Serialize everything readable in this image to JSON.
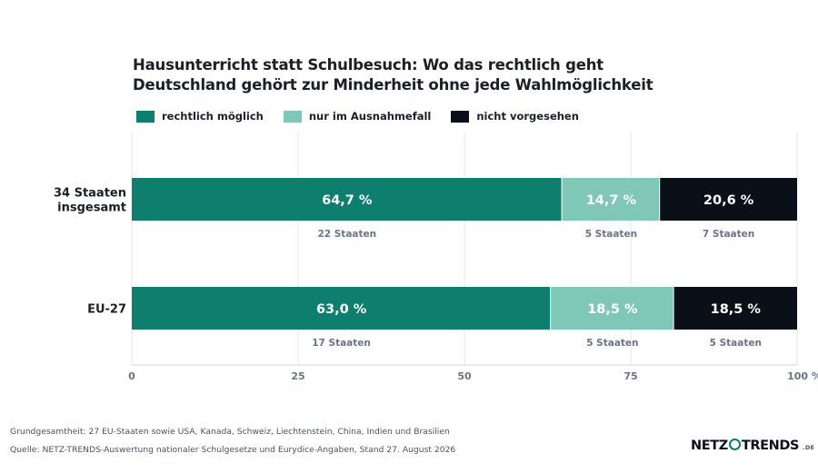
{
  "header": {
    "title_line1": "Hausunterricht statt Schulbesuch: Wo das rechtlich geht",
    "title_line2": "Deutschland gehört zur Minderheit ohne jede Wahlmöglichkeit"
  },
  "legend": [
    {
      "label": "rechtlich möglich",
      "color": "#0e7f6f"
    },
    {
      "label": "nur im Ausnahmefall",
      "color": "#7fc8b8"
    },
    {
      "label": "nicht vorgesehen",
      "color": "#0b0f18"
    }
  ],
  "chart_data": {
    "type": "bar",
    "orientation": "horizontal",
    "stacked": true,
    "categories": [
      [
        "34 Staaten",
        "insgesamt"
      ],
      [
        "EU-27"
      ]
    ],
    "series": [
      {
        "name": "rechtlich möglich",
        "color": "#0e7f6f",
        "text_color": "#ffffff",
        "values": [
          64.7,
          63.0
        ],
        "labels": [
          "64,7 %",
          "63,0 %"
        ],
        "counts": [
          "22 Staaten",
          "17 Staaten"
        ]
      },
      {
        "name": "nur im Ausnahmefall",
        "color": "#7fc8b8",
        "text_color": "#ffffff",
        "values": [
          14.7,
          18.5
        ],
        "labels": [
          "14,7 %",
          "18,5 %"
        ],
        "counts": [
          "5 Staaten",
          "5 Staaten"
        ]
      },
      {
        "name": "nicht vorgesehen",
        "color": "#0b0f18",
        "text_color": "#ffffff",
        "values": [
          20.6,
          18.5
        ],
        "labels": [
          "20,6 %",
          "18,5 %"
        ],
        "counts": [
          "7 Staaten",
          "5 Staaten"
        ]
      }
    ],
    "xlim": [
      0,
      100
    ],
    "xticks": [
      0,
      25,
      50,
      75,
      100
    ],
    "xtick_labels": [
      "0",
      "25",
      "50",
      "75",
      "100 %"
    ],
    "grid": true
  },
  "footer": {
    "note": "Grundgesamtheit: 27 EU-Staaten sowie USA, Kanada, Schweiz, Liechtenstein, China, Indien und Brasilien",
    "source": "Quelle: NETZ-TRENDS-Auswertung nationaler Schulgesetze und Eurydice-Angaben, Stand 27. August 2026"
  },
  "logo": {
    "part1": "NETZ",
    "part2": "TRENDS",
    "suffix": ".DE"
  }
}
